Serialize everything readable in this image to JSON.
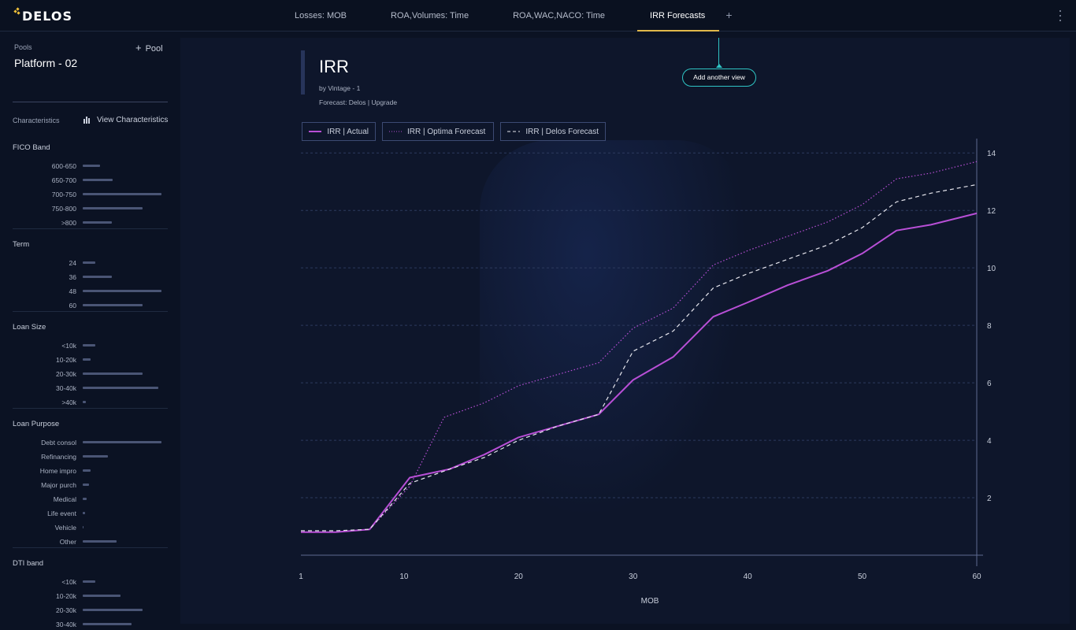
{
  "app": {
    "logo_text": "DELOS",
    "accent": "#e0b84a"
  },
  "tabs": [
    {
      "label": "Losses: MOB",
      "active": false
    },
    {
      "label": "ROA,Volumes: Time",
      "active": false
    },
    {
      "label": "ROA,WAC,NACO: Time",
      "active": false
    },
    {
      "label": "IRR Forecasts",
      "active": true
    }
  ],
  "tab_add_label": "+",
  "sidebar": {
    "pools_label": "Pools",
    "pool_name": "Platform - 02",
    "add_pool_label": "Pool",
    "characteristics_label": "Characteristics",
    "view_characteristics_label": "View Characteristics",
    "groups": [
      {
        "title": "FICO Band",
        "rows": [
          {
            "label": "600-650",
            "value": 0.22
          },
          {
            "label": "650-700",
            "value": 0.38
          },
          {
            "label": "700-750",
            "value": 1.0
          },
          {
            "label": "750-800",
            "value": 0.76
          },
          {
            "label": ">800",
            "value": 0.37
          }
        ]
      },
      {
        "title": "Term",
        "rows": [
          {
            "label": "24",
            "value": 0.16
          },
          {
            "label": "36",
            "value": 0.37
          },
          {
            "label": "48",
            "value": 1.0
          },
          {
            "label": "60",
            "value": 0.76
          }
        ]
      },
      {
        "title": "Loan Size",
        "rows": [
          {
            "label": "<10k",
            "value": 0.16
          },
          {
            "label": "10-20k",
            "value": 0.1
          },
          {
            "label": "20-30k",
            "value": 0.76
          },
          {
            "label": "30-40k",
            "value": 0.96
          },
          {
            "label": ">40k",
            "value": 0.04
          }
        ]
      },
      {
        "title": "Loan Purpose",
        "rows": [
          {
            "label": "Debt consol",
            "value": 1.0
          },
          {
            "label": "Refinancing",
            "value": 0.32
          },
          {
            "label": "Home impro",
            "value": 0.1
          },
          {
            "label": "Major purch",
            "value": 0.08
          },
          {
            "label": "Medical",
            "value": 0.05
          },
          {
            "label": "Life event",
            "value": 0.03
          },
          {
            "label": "Vehicle",
            "value": 0.01
          },
          {
            "label": "Other",
            "value": 0.43
          }
        ]
      },
      {
        "title": "DTI band",
        "rows": [
          {
            "label": "<10k",
            "value": 0.16
          },
          {
            "label": "10-20k",
            "value": 0.48
          },
          {
            "label": "20-30k",
            "value": 0.76
          },
          {
            "label": "30-40k",
            "value": 0.62
          }
        ]
      }
    ]
  },
  "main": {
    "title": "IRR",
    "subtitle": "by Vintage - 1",
    "forecast_line": "Forecast: Delos | Upgrade",
    "add_view_label": "Add another view"
  },
  "colors": {
    "actual": "#b84fd6",
    "optima": "#b84fd6",
    "delos": "#e6e6ee",
    "grid": "#2c3a5e",
    "axis": "#5d6a91"
  },
  "chart_data": {
    "type": "line",
    "title": "IRR",
    "xlabel": "MOB",
    "ylabel": "",
    "xlim": [
      1,
      60
    ],
    "ylim": [
      0,
      14.5
    ],
    "x_ticks": [
      1,
      10,
      20,
      30,
      40,
      50,
      60
    ],
    "y_ticks": [
      2,
      4,
      6,
      8,
      10,
      12,
      14
    ],
    "legend_position": "top-left",
    "grid": true,
    "series": [
      {
        "name": "IRR | Actual",
        "style": "solid",
        "points": [
          [
            1,
            0.8
          ],
          [
            4,
            0.8
          ],
          [
            7,
            0.9
          ],
          [
            10.5,
            2.7
          ],
          [
            14,
            3.0
          ],
          [
            17,
            3.5
          ],
          [
            20,
            4.1
          ],
          [
            23.5,
            4.5
          ],
          [
            27,
            4.9
          ],
          [
            30,
            6.1
          ],
          [
            33.5,
            6.9
          ],
          [
            37,
            8.3
          ],
          [
            40,
            8.8
          ],
          [
            43.5,
            9.4
          ],
          [
            47,
            9.9
          ],
          [
            50,
            10.5
          ],
          [
            53,
            11.3
          ],
          [
            56,
            11.5
          ],
          [
            60,
            11.9
          ]
        ]
      },
      {
        "name": "IRR | Optima Forecast",
        "style": "dotted",
        "points": [
          [
            1,
            0.8
          ],
          [
            4,
            0.8
          ],
          [
            7,
            0.9
          ],
          [
            10.5,
            2.4
          ],
          [
            13.5,
            4.8
          ],
          [
            17,
            5.3
          ],
          [
            20,
            5.9
          ],
          [
            23.5,
            6.3
          ],
          [
            27,
            6.7
          ],
          [
            30,
            7.9
          ],
          [
            33.5,
            8.6
          ],
          [
            37,
            10.1
          ],
          [
            40,
            10.6
          ],
          [
            43.5,
            11.1
          ],
          [
            47,
            11.6
          ],
          [
            50,
            12.2
          ],
          [
            53,
            13.1
          ],
          [
            56,
            13.3
          ],
          [
            60,
            13.7
          ]
        ]
      },
      {
        "name": "IRR | Delos Forecast",
        "style": "dashed",
        "points": [
          [
            1,
            0.85
          ],
          [
            4,
            0.85
          ],
          [
            7,
            0.9
          ],
          [
            10.5,
            2.5
          ],
          [
            14,
            3.0
          ],
          [
            17,
            3.4
          ],
          [
            20,
            4.0
          ],
          [
            23.5,
            4.5
          ],
          [
            27,
            4.9
          ],
          [
            30,
            7.1
          ],
          [
            33.5,
            7.8
          ],
          [
            37,
            9.3
          ],
          [
            40,
            9.8
          ],
          [
            43.5,
            10.3
          ],
          [
            47,
            10.8
          ],
          [
            50,
            11.4
          ],
          [
            53,
            12.3
          ],
          [
            56,
            12.6
          ],
          [
            60,
            12.9
          ]
        ]
      }
    ]
  }
}
